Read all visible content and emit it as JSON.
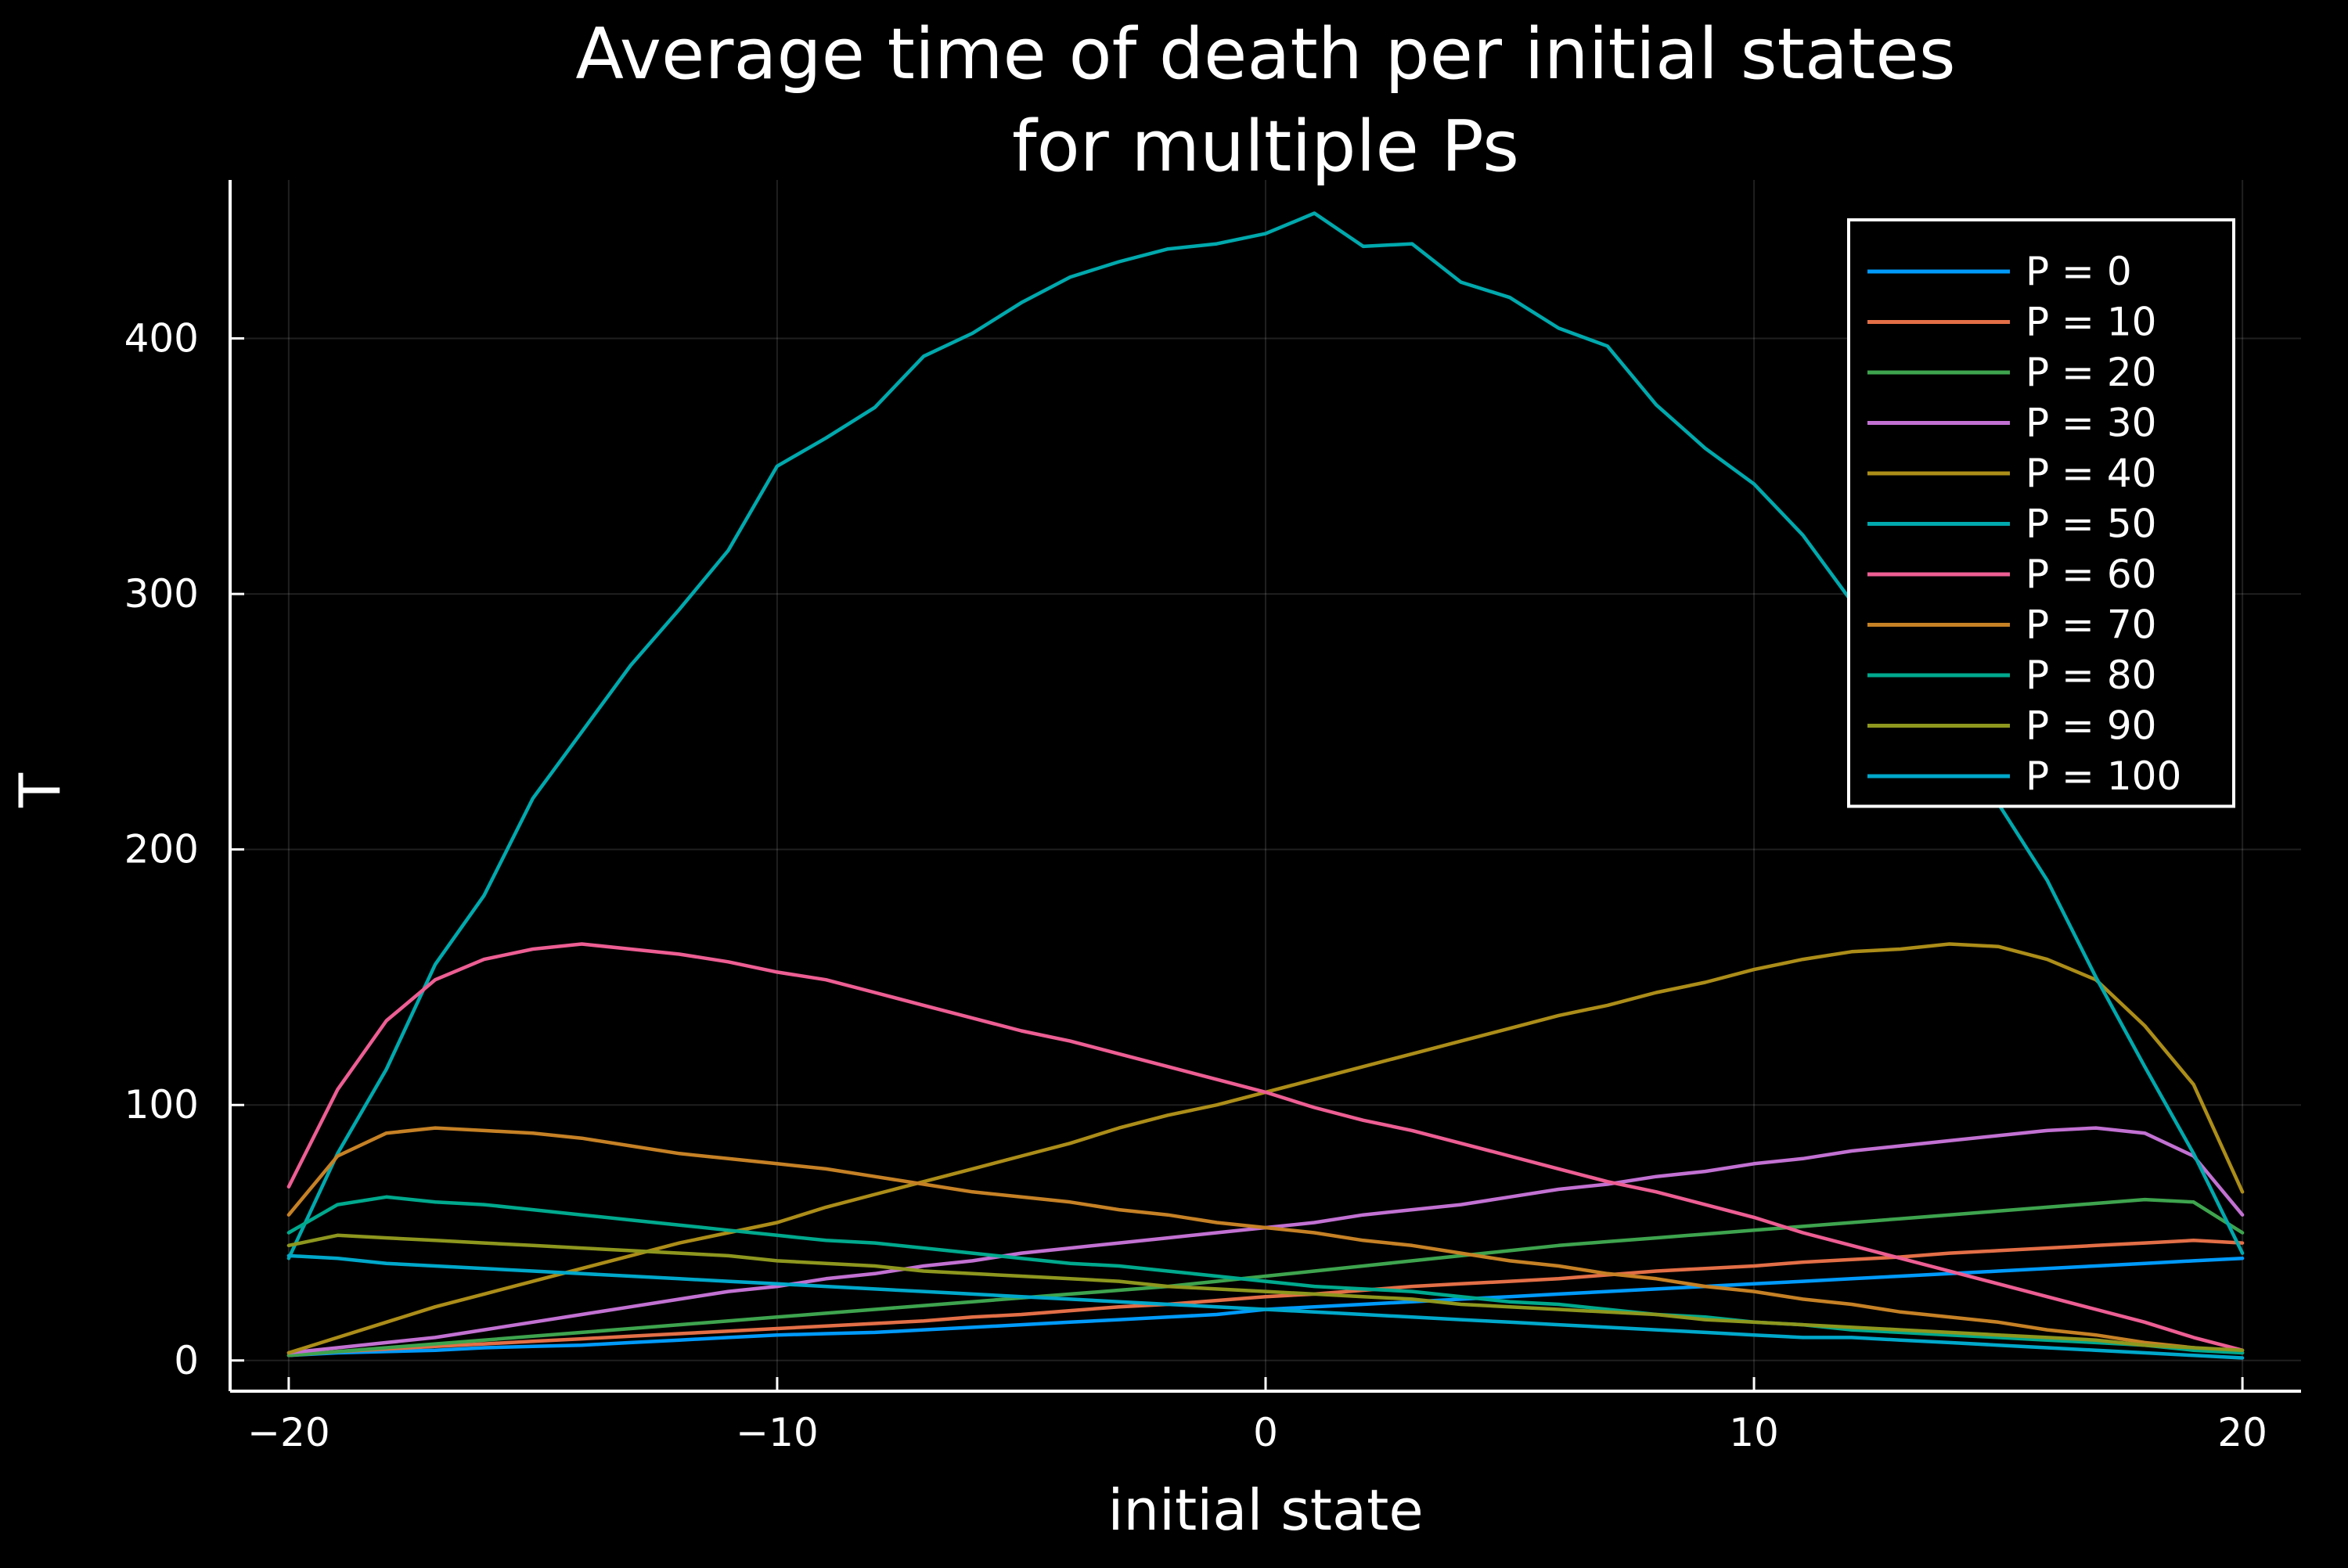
{
  "chart_data": {
    "type": "line",
    "title": [
      "Average time of death per initial states",
      "for multiple Ps"
    ],
    "xlabel": "initial state",
    "ylabel": "T",
    "xlim": [
      -21.2,
      21.2
    ],
    "ylim": [
      -12,
      462
    ],
    "xticks": [
      -20,
      -10,
      0,
      10,
      20
    ],
    "xtick_labels": [
      "−20",
      "−10",
      "0",
      "10",
      "20"
    ],
    "yticks": [
      0,
      100,
      200,
      300,
      400
    ],
    "ytick_labels": [
      "0",
      "100",
      "200",
      "300",
      "400"
    ],
    "grid": true,
    "legend_position": "top-right",
    "x": [
      -20,
      -19,
      -18,
      -17,
      -16,
      -15,
      -14,
      -13,
      -12,
      -11,
      -10,
      -9,
      -8,
      -7,
      -6,
      -5,
      -4,
      -3,
      -2,
      -1,
      0,
      1,
      2,
      3,
      4,
      5,
      6,
      7,
      8,
      9,
      10,
      11,
      12,
      13,
      14,
      15,
      16,
      17,
      18,
      19,
      20
    ],
    "series": [
      {
        "name": "P = 0",
        "color": "#009AFA",
        "values": [
          2,
          3,
          3.5,
          4,
          5,
          5.5,
          6,
          7,
          8,
          9,
          10,
          10.5,
          11,
          12,
          13,
          14,
          15,
          16,
          17,
          18,
          20,
          21,
          22,
          23,
          24,
          25,
          26,
          27,
          28,
          29,
          30,
          31,
          32,
          33,
          34,
          35,
          36,
          37,
          38,
          39,
          40
        ]
      },
      {
        "name": "P = 10",
        "color": "#E36F47",
        "values": [
          2,
          3.5,
          4.5,
          5.5,
          6.5,
          7.5,
          8.5,
          9.5,
          10.5,
          11.5,
          12.5,
          13.5,
          14.5,
          15.5,
          17,
          18,
          19.5,
          21,
          22,
          23.5,
          25,
          26,
          27.5,
          29,
          30,
          31,
          32,
          33.5,
          35,
          36,
          37,
          38.5,
          39.5,
          40.5,
          42,
          43,
          44,
          45,
          46,
          47,
          46
        ]
      },
      {
        "name": "P = 20",
        "color": "#3EA44E",
        "values": [
          2,
          3.5,
          5,
          6.5,
          8,
          9.5,
          11,
          12.5,
          14,
          15.5,
          17,
          18.5,
          20,
          21.5,
          23,
          24.5,
          26,
          27.5,
          29,
          31,
          33,
          35,
          37,
          39,
          41,
          43,
          45,
          46.5,
          48,
          49.5,
          51,
          52.5,
          54,
          55.5,
          57,
          58.5,
          60,
          61.5,
          63,
          62,
          50
        ]
      },
      {
        "name": "P = 30",
        "color": "#C271D2",
        "values": [
          3,
          5,
          7,
          9,
          12,
          15,
          18,
          21,
          24,
          27,
          29,
          32,
          34,
          37,
          39,
          42,
          44,
          46,
          48,
          50,
          52,
          54,
          57,
          59,
          61,
          64,
          67,
          69,
          72,
          74,
          77,
          79,
          82,
          84,
          86,
          88,
          90,
          91,
          89,
          80,
          57
        ]
      },
      {
        "name": "P = 40",
        "color": "#AC8D18",
        "values": [
          3,
          9,
          15,
          21,
          26,
          31,
          36,
          41,
          46,
          50,
          54,
          60,
          65,
          70,
          75,
          80,
          85,
          91,
          96,
          100,
          105,
          110,
          115,
          120,
          125,
          130,
          135,
          139,
          144,
          148,
          153,
          157,
          160,
          161,
          163,
          162,
          157,
          149,
          131,
          108,
          66
        ]
      },
      {
        "name": "P = 50",
        "color": "#00A9AD",
        "values": [
          40,
          81,
          114,
          155,
          182,
          220,
          246,
          272,
          294,
          317,
          350,
          361,
          373,
          393,
          402,
          414,
          424,
          430,
          435,
          437,
          441,
          449,
          436,
          437,
          422,
          416,
          404,
          397,
          374,
          357,
          343,
          323,
          297,
          276,
          250,
          218,
          188,
          150,
          115,
          81,
          42
        ]
      },
      {
        "name": "P = 60",
        "color": "#ED5E93",
        "values": [
          68,
          106,
          133,
          149,
          157,
          161,
          163,
          161,
          159,
          156,
          152,
          149,
          144,
          139,
          134,
          129,
          125,
          120,
          115,
          110,
          105,
          99,
          94,
          90,
          85,
          80,
          75,
          70,
          66,
          61,
          56,
          50,
          45,
          40,
          35,
          30,
          25,
          20,
          15,
          9,
          4
        ]
      },
      {
        "name": "P = 70",
        "color": "#C68125",
        "values": [
          57,
          80,
          89,
          91,
          90,
          89,
          87,
          84,
          81,
          79,
          77,
          75,
          72,
          69,
          66,
          64,
          62,
          59,
          57,
          54,
          52,
          50,
          47,
          45,
          42,
          39,
          37,
          34,
          32,
          29,
          27,
          24,
          22,
          19,
          17,
          15,
          12,
          10,
          7,
          5,
          3
        ]
      },
      {
        "name": "P = 80",
        "color": "#00A98D",
        "values": [
          50,
          61,
          64,
          62,
          61,
          59,
          57,
          55,
          53,
          51,
          49,
          47,
          46,
          44,
          42,
          40,
          38,
          37,
          35,
          33,
          31,
          29,
          28,
          27,
          25,
          23,
          22,
          20,
          18,
          17,
          15,
          14,
          12,
          11,
          10,
          9,
          8,
          7,
          6,
          4,
          3
        ]
      },
      {
        "name": "P = 90",
        "color": "#8E971E",
        "values": [
          45,
          49,
          48,
          47,
          46,
          45,
          44,
          43,
          42,
          41,
          39,
          38,
          37,
          35,
          34,
          33,
          32,
          31,
          29,
          28,
          27,
          26,
          25,
          24,
          22,
          21,
          20,
          19,
          18,
          16,
          15,
          14,
          13,
          12,
          11,
          10,
          9,
          8,
          6,
          5,
          4
        ]
      },
      {
        "name": "P = 100",
        "color": "#00A8CB",
        "values": [
          41,
          40,
          38,
          37,
          36,
          35,
          34,
          33,
          32,
          31,
          30,
          29,
          28,
          27,
          26,
          25,
          24,
          23,
          22,
          21,
          20,
          19,
          18,
          17,
          16,
          15,
          14,
          13,
          12,
          11,
          10,
          9,
          9,
          8,
          7,
          6,
          5,
          4,
          3,
          2,
          1
        ]
      }
    ]
  }
}
